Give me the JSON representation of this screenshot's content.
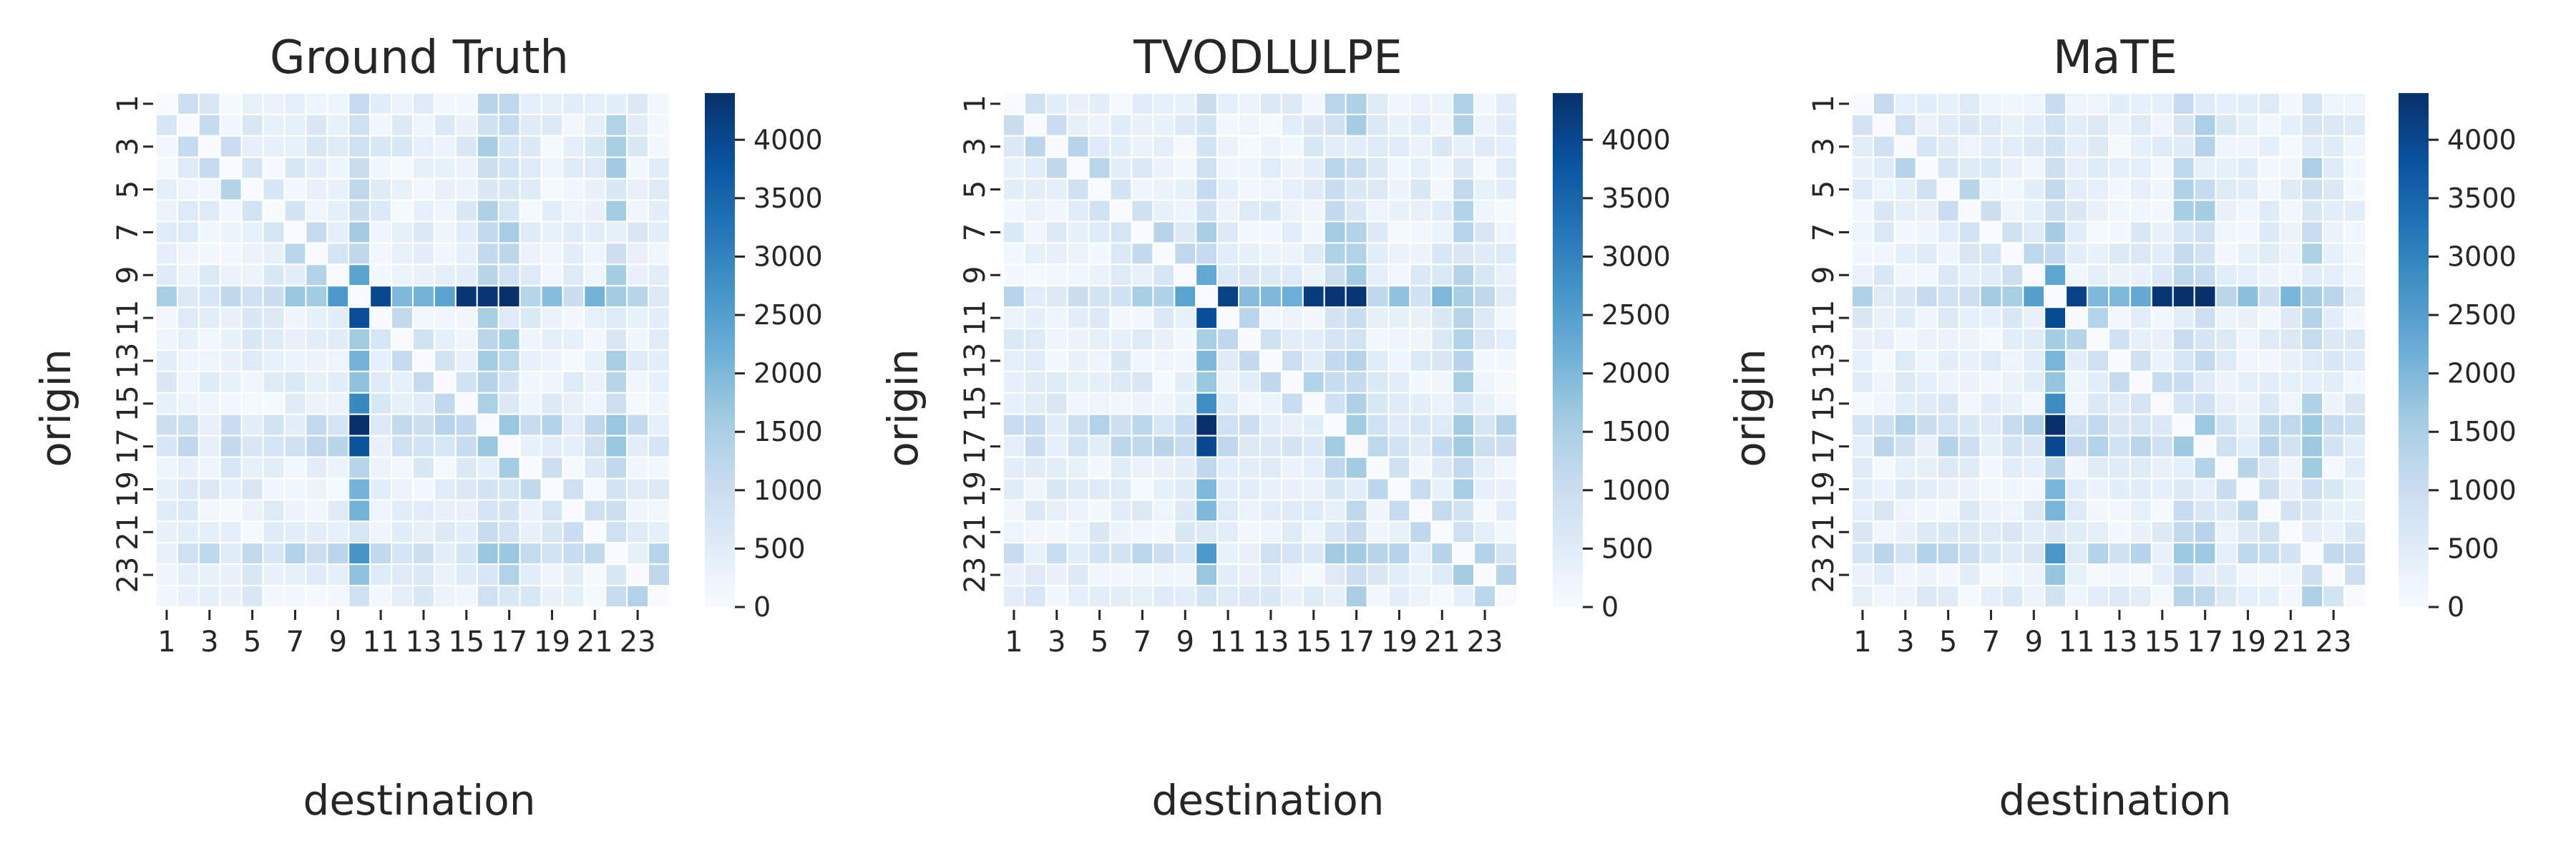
{
  "figure": {
    "colormap": [
      "#f7fbff",
      "#deebf7",
      "#c6dbef",
      "#9ecae1",
      "#6baed6",
      "#4292c6",
      "#2171b5",
      "#08519c",
      "#08306b"
    ],
    "cell_border_color": "#ffffff",
    "tick_color": "#262626"
  },
  "chart_data": [
    {
      "type": "heatmap",
      "title": "Ground Truth",
      "xlabel": "destination",
      "ylabel": "origin",
      "x_ticks": [
        "1",
        "3",
        "5",
        "7",
        "9",
        "11",
        "13",
        "15",
        "17",
        "19",
        "21",
        "23"
      ],
      "y_ticks": [
        "1",
        "3",
        "5",
        "7",
        "9",
        "11",
        "13",
        "15",
        "17",
        "19",
        "21",
        "23"
      ],
      "colorbar": {
        "range": [
          0,
          4400
        ],
        "ticks": [
          "0",
          "500",
          "1000",
          "1500",
          "2000",
          "2500",
          "3000",
          "3500",
          "4000"
        ]
      },
      "n_zones": 24,
      "hub_zone": 10,
      "hub_row_values": [
        1500,
        600,
        700,
        1200,
        900,
        1000,
        1700,
        1600,
        2600,
        0,
        4000,
        2000,
        2100,
        2400,
        4300,
        4300,
        4400,
        1300,
        1900,
        1000,
        2100,
        1600,
        1300,
        600
      ],
      "hub_col_values": [
        1100,
        900,
        900,
        1000,
        1200,
        1000,
        1600,
        1200,
        2400,
        4000,
        3900,
        1600,
        2100,
        1800,
        2900,
        4400,
        3800,
        1300,
        2100,
        2100,
        700,
        2700,
        1800,
        900
      ],
      "block_zones": [
        16,
        17,
        22
      ],
      "block_value": 1700
    },
    {
      "type": "heatmap",
      "title": "TVODLULPE",
      "xlabel": "destination",
      "ylabel": "origin",
      "x_ticks": [
        "1",
        "3",
        "5",
        "7",
        "9",
        "11",
        "13",
        "15",
        "17",
        "19",
        "21",
        "23"
      ],
      "y_ticks": [
        "1",
        "3",
        "5",
        "7",
        "9",
        "11",
        "13",
        "15",
        "17",
        "19",
        "21",
        "23"
      ],
      "colorbar": {
        "range": [
          0,
          4400
        ],
        "ticks": [
          "0",
          "500",
          "1000",
          "1500",
          "2000",
          "2500",
          "3000",
          "3500",
          "4000"
        ]
      },
      "n_zones": 24,
      "hub_zone": 10,
      "hub_row_values": [
        1300,
        500,
        600,
        1000,
        800,
        900,
        1500,
        1400,
        2400,
        0,
        4100,
        1900,
        2000,
        2200,
        4200,
        4300,
        4300,
        1200,
        1800,
        900,
        2000,
        1500,
        1200,
        500
      ],
      "hub_col_values": [
        1000,
        800,
        800,
        900,
        1100,
        900,
        1500,
        1100,
        2300,
        4100,
        3900,
        1500,
        2000,
        1700,
        2800,
        4400,
        4000,
        1200,
        2000,
        2000,
        600,
        2600,
        1700,
        800
      ],
      "block_zones": [
        16,
        17,
        22
      ],
      "block_value": 1600
    },
    {
      "type": "heatmap",
      "title": "MaTE",
      "xlabel": "destination",
      "ylabel": "origin",
      "x_ticks": [
        "1",
        "3",
        "5",
        "7",
        "9",
        "11",
        "13",
        "15",
        "17",
        "19",
        "21",
        "23"
      ],
      "y_ticks": [
        "1",
        "3",
        "5",
        "7",
        "9",
        "11",
        "13",
        "15",
        "17",
        "19",
        "21",
        "23"
      ],
      "colorbar": {
        "range": [
          0,
          4400
        ],
        "ticks": [
          "0",
          "500",
          "1000",
          "1500",
          "2000",
          "2500",
          "3000",
          "3500",
          "4000"
        ]
      },
      "n_zones": 24,
      "hub_zone": 10,
      "hub_row_values": [
        1400,
        550,
        650,
        1100,
        850,
        950,
        1600,
        1500,
        2500,
        0,
        4100,
        2000,
        2000,
        2300,
        4300,
        4400,
        4400,
        1250,
        1850,
        950,
        2050,
        1550,
        1250,
        550
      ],
      "hub_col_values": [
        1050,
        850,
        850,
        950,
        1150,
        950,
        1550,
        1150,
        2350,
        4100,
        3950,
        1550,
        2050,
        1750,
        2850,
        4400,
        4000,
        1250,
        2050,
        2050,
        650,
        2650,
        1750,
        850
      ],
      "block_zones": [
        16,
        17,
        22
      ],
      "block_value": 1650
    }
  ]
}
